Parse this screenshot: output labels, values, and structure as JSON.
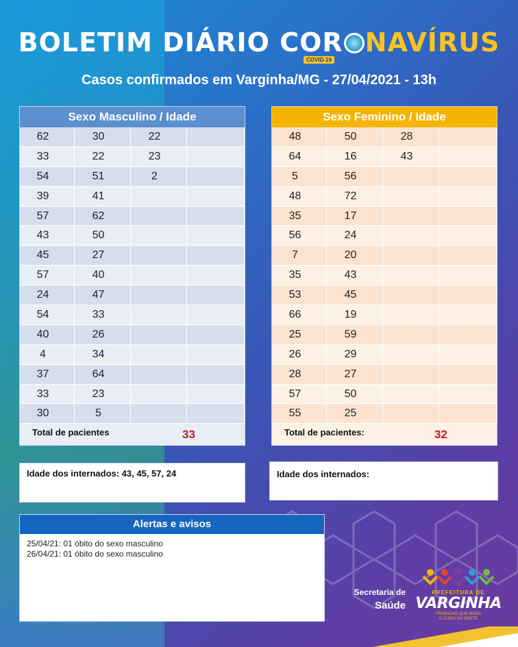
{
  "title": {
    "part1": "BOLETIM DIÁRIO CO",
    "part2": "R",
    "part3": "NA",
    "part4": "VÍRUS",
    "covid_tag": "COVID-19"
  },
  "subtitle": "Casos confirmados em Varginha/MG - 27/04/2021 - 13h",
  "male": {
    "heading": "Sexo Masculino / Idade",
    "rows": [
      [
        "62",
        "30",
        "22",
        ""
      ],
      [
        "33",
        "22",
        "23",
        ""
      ],
      [
        "54",
        "51",
        "2",
        ""
      ],
      [
        "39",
        "41",
        "",
        ""
      ],
      [
        "57",
        "62",
        "",
        ""
      ],
      [
        "43",
        "50",
        "",
        ""
      ],
      [
        "45",
        "27",
        "",
        ""
      ],
      [
        "57",
        "40",
        "",
        ""
      ],
      [
        "24",
        "47",
        "",
        ""
      ],
      [
        "54",
        "33",
        "",
        ""
      ],
      [
        "40",
        "26",
        "",
        ""
      ],
      [
        "4",
        "34",
        "",
        ""
      ],
      [
        "37",
        "64",
        "",
        ""
      ],
      [
        "33",
        "23",
        "",
        ""
      ],
      [
        "30",
        "5",
        "",
        ""
      ]
    ],
    "total_label": "Total de pacientes",
    "total_value": "33",
    "hospitalized": "Idade dos internados: 43, 45, 57, 24"
  },
  "female": {
    "heading": "Sexo Feminino / Idade",
    "rows": [
      [
        "48",
        "50",
        "28",
        ""
      ],
      [
        "64",
        "16",
        "43",
        ""
      ],
      [
        "5",
        "56",
        "",
        ""
      ],
      [
        "48",
        "72",
        "",
        ""
      ],
      [
        "35",
        "17",
        "",
        ""
      ],
      [
        "56",
        "24",
        "",
        ""
      ],
      [
        "7",
        "20",
        "",
        ""
      ],
      [
        "35",
        "43",
        "",
        ""
      ],
      [
        "53",
        "45",
        "",
        ""
      ],
      [
        "66",
        "19",
        "",
        ""
      ],
      [
        "25",
        "59",
        "",
        ""
      ],
      [
        "26",
        "29",
        "",
        ""
      ],
      [
        "28",
        "27",
        "",
        ""
      ],
      [
        "57",
        "50",
        "",
        ""
      ],
      [
        "55",
        "25",
        "",
        ""
      ]
    ],
    "total_label": "Total de pacientes:",
    "total_value": "32",
    "hospitalized": "Idade dos internados:"
  },
  "alerts": {
    "heading": "Alertas e avisos",
    "lines": [
      "25/04/21:  01 óbito do  sexo masculino",
      "26/04/21:  01 óbito do  sexo masculino"
    ]
  },
  "footer": {
    "secretaria_line1": "Secretaria de",
    "secretaria_line2": "Saúde",
    "logo_top": "PREFEITURA DE",
    "logo_name": "VARGINHA",
    "logo_sub1": "TRABALHO QUE MUDA",
    "logo_sub2": "E CUIDA DA GENTE"
  },
  "colors": {
    "male_header": "#5b8fcf",
    "female_header": "#f4b400",
    "alerts_header": "#1565c0",
    "total_value": "#c41a1a",
    "title_yellow": "#f7c325"
  }
}
